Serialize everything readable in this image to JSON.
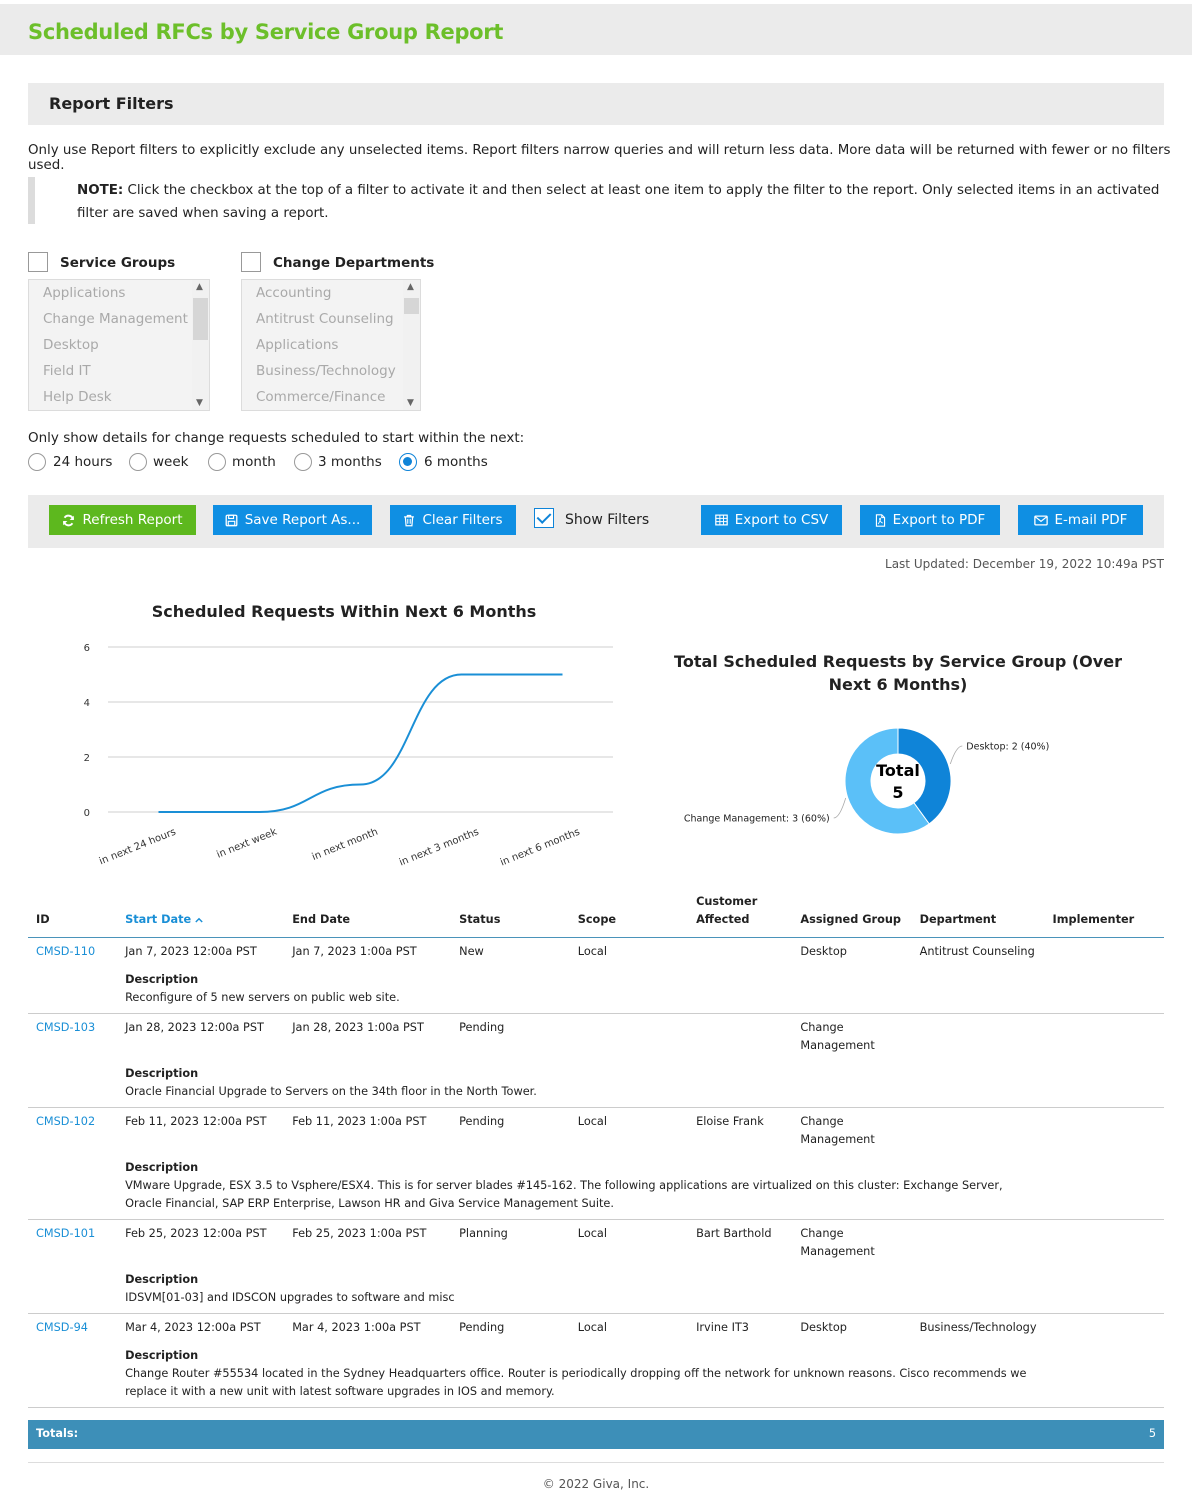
{
  "page": {
    "title": "Scheduled RFCs by Service Group Report"
  },
  "filters": {
    "header": "Report Filters",
    "intro": "Only use Report filters to explicitly exclude any unselected items. Report filters narrow queries and will return less data. More data will be returned with fewer or no filters used.",
    "note_label": "NOTE:",
    "note_text": " Click the checkbox at the top of a filter to activate it and then select at least one item to apply the filter to the report. Only selected items in an activated filter are saved when saving a report.",
    "service_groups": {
      "label": "Service Groups",
      "checked": false,
      "options": [
        "Applications",
        "Change Management",
        "Desktop",
        "Field IT",
        "Help Desk"
      ]
    },
    "change_departments": {
      "label": "Change Departments",
      "checked": false,
      "options": [
        "Accounting",
        "Antitrust Counseling",
        "Applications",
        "Business/Technology",
        "Commerce/Finance"
      ]
    },
    "period": {
      "label": "Only show details for change requests scheduled to start within the next:",
      "options": [
        "24 hours",
        "week",
        "month",
        "3 months",
        "6 months"
      ],
      "selected": "6 months"
    }
  },
  "toolbar": {
    "refresh": "Refresh Report",
    "save": "Save Report As...",
    "clear": "Clear Filters",
    "show_filters": "Show Filters",
    "show_filters_checked": true,
    "export_csv": "Export to CSV",
    "export_pdf": "Export to PDF",
    "email_pdf": "E-mail PDF",
    "colors": {
      "primary": "#0f8fe3",
      "refresh": "#5db81e"
    }
  },
  "last_updated": "Last Updated: December 19, 2022 10:49a PST",
  "chart_data": [
    {
      "type": "line",
      "title": "Scheduled Requests Within Next 6 Months",
      "categories": [
        "in next 24 hours",
        "in next week",
        "in next month",
        "in next 3 months",
        "in next 6 months"
      ],
      "series": [
        {
          "values": [
            0,
            0,
            1,
            5,
            5
          ],
          "color": "#1a8fd6"
        }
      ],
      "ylim": [
        0,
        6
      ],
      "yticks": [
        0,
        2,
        4,
        6
      ],
      "grid": true
    },
    {
      "type": "pie",
      "title": "Total Scheduled Requests by Service Group (Over Next 6 Months)",
      "center_label": "Total",
      "center_value": "5",
      "slices": [
        {
          "label": "Desktop: 2 (40%)",
          "name": "Desktop",
          "value": 2,
          "color": "#0f84d8"
        },
        {
          "label": "Change Management: 3 (60%)",
          "name": "Change Management",
          "value": 3,
          "color": "#5bc0f8"
        }
      ]
    }
  ],
  "table": {
    "columns": [
      "ID",
      "Start Date",
      "End Date",
      "Status",
      "Scope",
      "Customer Affected",
      "Assigned Group",
      "Department",
      "Implementer"
    ],
    "description_label": "Description",
    "rows": [
      {
        "id": "CMSD-110",
        "start": "Jan 7, 2023 12:00a PST",
        "end": "Jan 7, 2023 1:00a PST",
        "status": "New",
        "scope": "Local",
        "customer": "",
        "group": "Desktop",
        "department": "Antitrust Counseling",
        "implementer": "",
        "description": "Reconfigure of 5 new servers on public web site."
      },
      {
        "id": "CMSD-103",
        "start": "Jan 28, 2023 12:00a PST",
        "end": "Jan 28, 2023 1:00a PST",
        "status": "Pending",
        "scope": "",
        "customer": "",
        "group": "Change Management",
        "department": "",
        "implementer": "",
        "description": "Oracle Financial Upgrade to Servers on the 34th floor in the North Tower."
      },
      {
        "id": "CMSD-102",
        "start": "Feb 11, 2023 12:00a PST",
        "end": "Feb 11, 2023 1:00a PST",
        "status": "Pending",
        "scope": "Local",
        "customer": "Eloise Frank",
        "group": "Change Management",
        "department": "",
        "implementer": "",
        "description": "VMware Upgrade, ESX 3.5 to Vsphere/ESX4. This is for server blades #145-162. The following applications are virtualized on this cluster: Exchange Server, Oracle Financial, SAP ERP Enterprise, Lawson HR and Giva Service Management Suite."
      },
      {
        "id": "CMSD-101",
        "start": "Feb 25, 2023 12:00a PST",
        "end": "Feb 25, 2023 1:00a PST",
        "status": "Planning",
        "scope": "Local",
        "customer": "Bart Barthold",
        "group": "Change Management",
        "department": "",
        "implementer": "",
        "description": "IDSVM[01-03] and IDSCON upgrades to software and misc"
      },
      {
        "id": "CMSD-94",
        "start": "Mar 4, 2023 12:00a PST",
        "end": "Mar 4, 2023 1:00a PST",
        "status": "Pending",
        "scope": "Local",
        "customer": "Irvine IT3",
        "group": "Desktop",
        "department": "Business/Technology",
        "implementer": "",
        "description": "Change Router #55534 located in the Sydney Headquarters office. Router is periodically dropping off the network for unknown reasons. Cisco recommends we replace it with a new unit with latest software upgrades in IOS and memory."
      }
    ],
    "totals_label": "Totals:",
    "totals_value": "5"
  },
  "footer": {
    "copyright": "© 2022 Giva, Inc."
  }
}
